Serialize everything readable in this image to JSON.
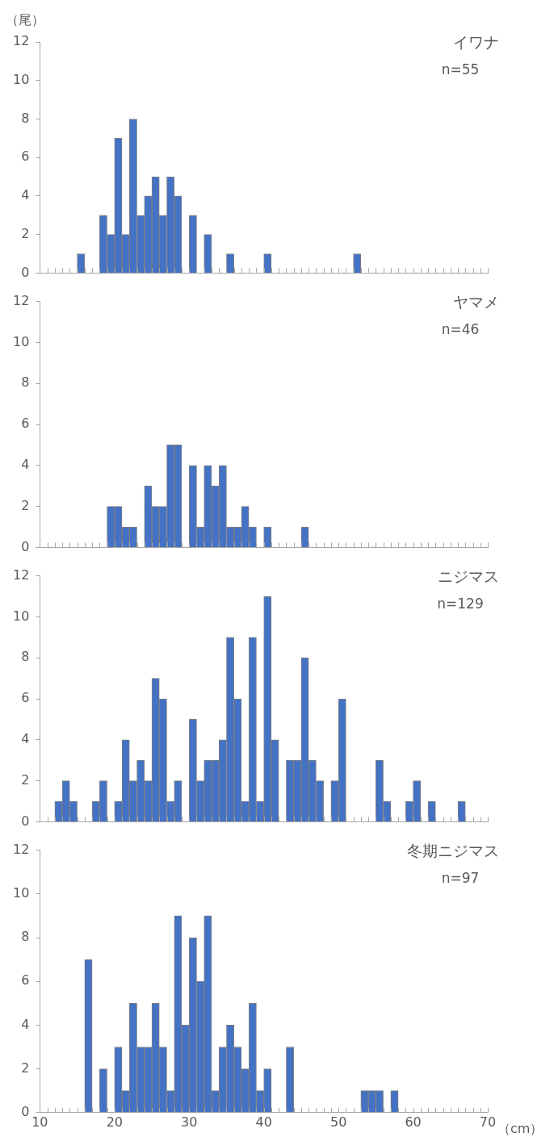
{
  "chart_data": [
    {
      "type": "histogram",
      "title": "イワナ",
      "subtitle": "n=55",
      "ylabel": "（尾）",
      "color": "#4472c4",
      "bins": [
        10,
        11,
        12,
        13,
        14,
        15,
        16,
        17,
        18,
        19,
        20,
        21,
        22,
        23,
        24,
        25,
        26,
        27,
        28,
        29,
        30,
        31,
        32,
        33,
        34,
        35,
        36,
        37,
        38,
        39,
        40,
        41,
        42,
        43,
        44,
        45,
        46,
        47,
        48,
        49,
        50,
        51,
        52,
        53,
        54,
        55,
        56,
        57,
        58,
        59,
        60,
        61,
        62,
        63,
        64,
        65,
        66,
        67,
        68,
        69,
        70
      ],
      "values": [
        0,
        0,
        0,
        0,
        0,
        1,
        0,
        0,
        3,
        2,
        7,
        2,
        8,
        3,
        4,
        5,
        3,
        5,
        4,
        0,
        3,
        0,
        2,
        0,
        0,
        1,
        0,
        0,
        0,
        0,
        1,
        0,
        0,
        0,
        0,
        0,
        0,
        0,
        0,
        0,
        0,
        0,
        1,
        0,
        0,
        0,
        0,
        0,
        0,
        0,
        0,
        0,
        0,
        0,
        0,
        0,
        0,
        0,
        0,
        0
      ],
      "xlim": [
        10,
        70
      ],
      "ylim": [
        0,
        12
      ],
      "yticks": [
        0,
        2,
        4,
        6,
        8,
        10,
        12
      ],
      "tick_labels": "y",
      "xticks": [
        10,
        {
          "value": 11,
          "label": null
        },
        {
          "value": 12,
          "label": null
        },
        {
          "value": 13,
          "label": null
        },
        {
          "value": 14,
          "label": null
        },
        {
          "value": 15,
          "label": null
        },
        {
          "value": 16,
          "label": null
        },
        {
          "value": 17,
          "label": null
        },
        {
          "value": 18,
          "label": null
        },
        {
          "value": 19,
          "label": null
        },
        20,
        {
          "value": 21,
          "label": null
        },
        {
          "value": 22,
          "label": null
        },
        {
          "value": 23,
          "label": null
        },
        {
          "value": 24,
          "label": null
        },
        {
          "value": 25,
          "label": null
        },
        {
          "value": 26,
          "label": null
        },
        {
          "value": 27,
          "label": null
        },
        {
          "value": 28,
          "label": null
        },
        {
          "value": 29,
          "label": null
        },
        30,
        {
          "value": 31,
          "label": null
        },
        {
          "value": 32,
          "label": null
        },
        {
          "value": 33,
          "label": null
        },
        {
          "value": 34,
          "label": null
        },
        {
          "value": 35,
          "label": null
        },
        {
          "value": 36,
          "label": null
        },
        {
          "value": 37,
          "label": null
        },
        {
          "value": 38,
          "label": null
        },
        {
          "value": 39,
          "label": null
        },
        40,
        {
          "value": 41,
          "label": null
        },
        {
          "value": 42,
          "label": null
        },
        {
          "value": 43,
          "label": null
        },
        {
          "value": 44,
          "label": null
        },
        {
          "value": 45,
          "label": null
        },
        {
          "value": 46,
          "label": null
        },
        {
          "value": 47,
          "label": null
        },
        {
          "value": 48,
          "label": null
        },
        {
          "value": 49,
          "label": null
        },
        50,
        {
          "value": 51,
          "label": null
        },
        {
          "value": 52,
          "label": null
        },
        {
          "value": 53,
          "label": null
        },
        {
          "value": 54,
          "label": null
        },
        {
          "value": 55,
          "label": null
        },
        {
          "value": 56,
          "label": null
        },
        {
          "value": 57,
          "label": null
        },
        {
          "value": 58,
          "label": null
        },
        {
          "value": 59,
          "label": null
        },
        60,
        {
          "value": 61,
          "label": null
        },
        {
          "value": 62,
          "label": null
        },
        {
          "value": 63,
          "label": null
        },
        {
          "value": 64,
          "label": null
        },
        {
          "value": 65,
          "label": null
        },
        {
          "value": 66,
          "label": null
        },
        {
          "value": 67,
          "label": null
        },
        {
          "value": 68,
          "label": null
        },
        {
          "value": 69,
          "label": null
        },
        70
      ]
    },
    {
      "type": "histogram",
      "title": "ヤマメ",
      "subtitle": "n=46",
      "color": "#4472c4",
      "bins": [
        10,
        11,
        12,
        13,
        14,
        15,
        16,
        17,
        18,
        19,
        20,
        21,
        22,
        23,
        24,
        25,
        26,
        27,
        28,
        29,
        30,
        31,
        32,
        33,
        34,
        35,
        36,
        37,
        38,
        39,
        40,
        41,
        42,
        43,
        44,
        45,
        46,
        47,
        48,
        49,
        50,
        51,
        52,
        53,
        54,
        55,
        56,
        57,
        58,
        59,
        60,
        61,
        62,
        63,
        64,
        65,
        66,
        67,
        68,
        69,
        70
      ],
      "values": [
        0,
        0,
        0,
        0,
        0,
        0,
        0,
        0,
        0,
        2,
        2,
        1,
        1,
        0,
        3,
        2,
        2,
        5,
        5,
        0,
        4,
        1,
        4,
        3,
        4,
        1,
        1,
        2,
        1,
        0,
        1,
        0,
        0,
        0,
        0,
        1,
        0,
        0,
        0,
        0,
        0,
        0,
        0,
        0,
        0,
        0,
        0,
        0,
        0,
        0,
        0,
        0,
        0,
        0,
        0,
        0,
        0,
        0,
        0,
        0
      ],
      "xlim": [
        10,
        70
      ],
      "ylim": [
        0,
        12
      ],
      "yticks": [
        0,
        2,
        4,
        6,
        8,
        10,
        12
      ],
      "tick_labels": "y",
      "xticks": [
        10,
        {
          "value": 11,
          "label": null
        },
        {
          "value": 12,
          "label": null
        },
        {
          "value": 13,
          "label": null
        },
        {
          "value": 14,
          "label": null
        },
        {
          "value": 15,
          "label": null
        },
        {
          "value": 16,
          "label": null
        },
        {
          "value": 17,
          "label": null
        },
        {
          "value": 18,
          "label": null
        },
        {
          "value": 19,
          "label": null
        },
        20,
        {
          "value": 21,
          "label": null
        },
        {
          "value": 22,
          "label": null
        },
        {
          "value": 23,
          "label": null
        },
        {
          "value": 24,
          "label": null
        },
        {
          "value": 25,
          "label": null
        },
        {
          "value": 26,
          "label": null
        },
        {
          "value": 27,
          "label": null
        },
        {
          "value": 28,
          "label": null
        },
        {
          "value": 29,
          "label": null
        },
        30,
        {
          "value": 31,
          "label": null
        },
        {
          "value": 32,
          "label": null
        },
        {
          "value": 33,
          "label": null
        },
        {
          "value": 34,
          "label": null
        },
        {
          "value": 35,
          "label": null
        },
        {
          "value": 36,
          "label": null
        },
        {
          "value": 37,
          "label": null
        },
        {
          "value": 38,
          "label": null
        },
        {
          "value": 39,
          "label": null
        },
        40,
        {
          "value": 41,
          "label": null
        },
        {
          "value": 42,
          "label": null
        },
        {
          "value": 43,
          "label": null
        },
        {
          "value": 44,
          "label": null
        },
        {
          "value": 45,
          "label": null
        },
        {
          "value": 46,
          "label": null
        },
        {
          "value": 47,
          "label": null
        },
        {
          "value": 48,
          "label": null
        },
        {
          "value": 49,
          "label": null
        },
        50,
        {
          "value": 51,
          "label": null
        },
        {
          "value": 52,
          "label": null
        },
        {
          "value": 53,
          "label": null
        },
        {
          "value": 54,
          "label": null
        },
        {
          "value": 55,
          "label": null
        },
        {
          "value": 56,
          "label": null
        },
        {
          "value": 57,
          "label": null
        },
        {
          "value": 58,
          "label": null
        },
        {
          "value": 59,
          "label": null
        },
        60,
        {
          "value": 61,
          "label": null
        },
        {
          "value": 62,
          "label": null
        },
        {
          "value": 63,
          "label": null
        },
        {
          "value": 64,
          "label": null
        },
        {
          "value": 65,
          "label": null
        },
        {
          "value": 66,
          "label": null
        },
        {
          "value": 67,
          "label": null
        },
        {
          "value": 68,
          "label": null
        },
        {
          "value": 69,
          "label": null
        },
        70
      ]
    },
    {
      "type": "histogram",
      "title": "ニジマス",
      "subtitle": "n=129",
      "color": "#4472c4",
      "bins": [
        10,
        11,
        12,
        13,
        14,
        15,
        16,
        17,
        18,
        19,
        20,
        21,
        22,
        23,
        24,
        25,
        26,
        27,
        28,
        29,
        30,
        31,
        32,
        33,
        34,
        35,
        36,
        37,
        38,
        39,
        40,
        41,
        42,
        43,
        44,
        45,
        46,
        47,
        48,
        49,
        50,
        51,
        52,
        53,
        54,
        55,
        56,
        57,
        58,
        59,
        60,
        61,
        62,
        63,
        64,
        65,
        66,
        67,
        68,
        69,
        70
      ],
      "values": [
        0,
        0,
        1,
        2,
        1,
        0,
        0,
        1,
        2,
        0,
        1,
        4,
        2,
        3,
        2,
        7,
        6,
        1,
        2,
        0,
        5,
        2,
        3,
        3,
        4,
        9,
        6,
        1,
        9,
        1,
        11,
        4,
        0,
        3,
        3,
        8,
        3,
        2,
        0,
        2,
        6,
        0,
        0,
        0,
        0,
        3,
        1,
        0,
        0,
        1,
        2,
        0,
        1,
        0,
        0,
        0,
        1,
        0,
        0,
        0
      ],
      "xlim": [
        10,
        70
      ],
      "ylim": [
        0,
        12
      ],
      "yticks": [
        0,
        2,
        4,
        6,
        8,
        10,
        12
      ],
      "tick_labels": "y",
      "xticks": [
        10,
        {
          "value": 11,
          "label": null
        },
        {
          "value": 12,
          "label": null
        },
        {
          "value": 13,
          "label": null
        },
        {
          "value": 14,
          "label": null
        },
        {
          "value": 15,
          "label": null
        },
        {
          "value": 16,
          "label": null
        },
        {
          "value": 17,
          "label": null
        },
        {
          "value": 18,
          "label": null
        },
        {
          "value": 19,
          "label": null
        },
        20,
        {
          "value": 21,
          "label": null
        },
        {
          "value": 22,
          "label": null
        },
        {
          "value": 23,
          "label": null
        },
        {
          "value": 24,
          "label": null
        },
        {
          "value": 25,
          "label": null
        },
        {
          "value": 26,
          "label": null
        },
        {
          "value": 27,
          "label": null
        },
        {
          "value": 28,
          "label": null
        },
        {
          "value": 29,
          "label": null
        },
        30,
        {
          "value": 31,
          "label": null
        },
        {
          "value": 32,
          "label": null
        },
        {
          "value": 33,
          "label": null
        },
        {
          "value": 34,
          "label": null
        },
        {
          "value": 35,
          "label": null
        },
        {
          "value": 36,
          "label": null
        },
        {
          "value": 37,
          "label": null
        },
        {
          "value": 38,
          "label": null
        },
        {
          "value": 39,
          "label": null
        },
        40,
        {
          "value": 41,
          "label": null
        },
        {
          "value": 42,
          "label": null
        },
        {
          "value": 43,
          "label": null
        },
        {
          "value": 44,
          "label": null
        },
        {
          "value": 45,
          "label": null
        },
        {
          "value": 46,
          "label": null
        },
        {
          "value": 47,
          "label": null
        },
        {
          "value": 48,
          "label": null
        },
        {
          "value": 49,
          "label": null
        },
        50,
        {
          "value": 51,
          "label": null
        },
        {
          "value": 52,
          "label": null
        },
        {
          "value": 53,
          "label": null
        },
        {
          "value": 54,
          "label": null
        },
        {
          "value": 55,
          "label": null
        },
        {
          "value": 56,
          "label": null
        },
        {
          "value": 57,
          "label": null
        },
        {
          "value": 58,
          "label": null
        },
        {
          "value": 59,
          "label": null
        },
        60,
        {
          "value": 61,
          "label": null
        },
        {
          "value": 62,
          "label": null
        },
        {
          "value": 63,
          "label": null
        },
        {
          "value": 64,
          "label": null
        },
        {
          "value": 65,
          "label": null
        },
        {
          "value": 66,
          "label": null
        },
        {
          "value": 67,
          "label": null
        },
        {
          "value": 68,
          "label": null
        },
        {
          "value": 69,
          "label": null
        },
        70
      ]
    },
    {
      "type": "histogram",
      "title": "冬期ニジマス",
      "subtitle": "n=97",
      "xlabel": "（cm）",
      "color": "#4472c4",
      "bins": [
        10,
        11,
        12,
        13,
        14,
        15,
        16,
        17,
        18,
        19,
        20,
        21,
        22,
        23,
        24,
        25,
        26,
        27,
        28,
        29,
        30,
        31,
        32,
        33,
        34,
        35,
        36,
        37,
        38,
        39,
        40,
        41,
        42,
        43,
        44,
        45,
        46,
        47,
        48,
        49,
        50,
        51,
        52,
        53,
        54,
        55,
        56,
        57,
        58,
        59,
        60,
        61,
        62,
        63,
        64,
        65,
        66,
        67,
        68,
        69,
        70
      ],
      "values": [
        0,
        0,
        0,
        0,
        0,
        0,
        7,
        0,
        2,
        0,
        3,
        1,
        5,
        3,
        3,
        5,
        3,
        1,
        9,
        4,
        8,
        6,
        9,
        1,
        3,
        4,
        3,
        2,
        5,
        1,
        2,
        0,
        0,
        3,
        0,
        0,
        0,
        0,
        0,
        0,
        0,
        0,
        0,
        1,
        1,
        1,
        0,
        1,
        0,
        0,
        0,
        0,
        0,
        0,
        0,
        0,
        0,
        0,
        0,
        0
      ],
      "xlim": [
        10,
        70
      ],
      "ylim": [
        0,
        12
      ],
      "yticks": [
        0,
        2,
        4,
        6,
        8,
        10,
        12
      ],
      "xticks": [
        10,
        {
          "value": 11,
          "label": null
        },
        {
          "value": 12,
          "label": null
        },
        {
          "value": 13,
          "label": null
        },
        {
          "value": 14,
          "label": null
        },
        {
          "value": 15,
          "label": null
        },
        {
          "value": 16,
          "label": null
        },
        {
          "value": 17,
          "label": null
        },
        {
          "value": 18,
          "label": null
        },
        {
          "value": 19,
          "label": null
        },
        20,
        {
          "value": 21,
          "label": null
        },
        {
          "value": 22,
          "label": null
        },
        {
          "value": 23,
          "label": null
        },
        {
          "value": 24,
          "label": null
        },
        {
          "value": 25,
          "label": null
        },
        {
          "value": 26,
          "label": null
        },
        {
          "value": 27,
          "label": null
        },
        {
          "value": 28,
          "label": null
        },
        {
          "value": 29,
          "label": null
        },
        30,
        {
          "value": 31,
          "label": null
        },
        {
          "value": 32,
          "label": null
        },
        {
          "value": 33,
          "label": null
        },
        {
          "value": 34,
          "label": null
        },
        {
          "value": 35,
          "label": null
        },
        {
          "value": 36,
          "label": null
        },
        {
          "value": 37,
          "label": null
        },
        {
          "value": 38,
          "label": null
        },
        {
          "value": 39,
          "label": null
        },
        40,
        {
          "value": 41,
          "label": null
        },
        {
          "value": 42,
          "label": null
        },
        {
          "value": 43,
          "label": null
        },
        {
          "value": 44,
          "label": null
        },
        {
          "value": 45,
          "label": null
        },
        {
          "value": 46,
          "label": null
        },
        {
          "value": 47,
          "label": null
        },
        {
          "value": 48,
          "label": null
        },
        {
          "value": 49,
          "label": null
        },
        50,
        {
          "value": 51,
          "label": null
        },
        {
          "value": 52,
          "label": null
        },
        {
          "value": 53,
          "label": null
        },
        {
          "value": 54,
          "label": null
        },
        {
          "value": 55,
          "label": null
        },
        {
          "value": 56,
          "label": null
        },
        {
          "value": 57,
          "label": null
        },
        {
          "value": 58,
          "label": null
        },
        {
          "value": 59,
          "label": null
        },
        60,
        {
          "value": 61,
          "label": null
        },
        {
          "value": 62,
          "label": null
        },
        {
          "value": 63,
          "label": null
        },
        {
          "value": 64,
          "label": null
        },
        {
          "value": 65,
          "label": null
        },
        {
          "value": 66,
          "label": null
        },
        {
          "value": 67,
          "label": null
        },
        {
          "value": 68,
          "label": null
        },
        {
          "value": 69,
          "label": null
        },
        70
      ]
    }
  ]
}
